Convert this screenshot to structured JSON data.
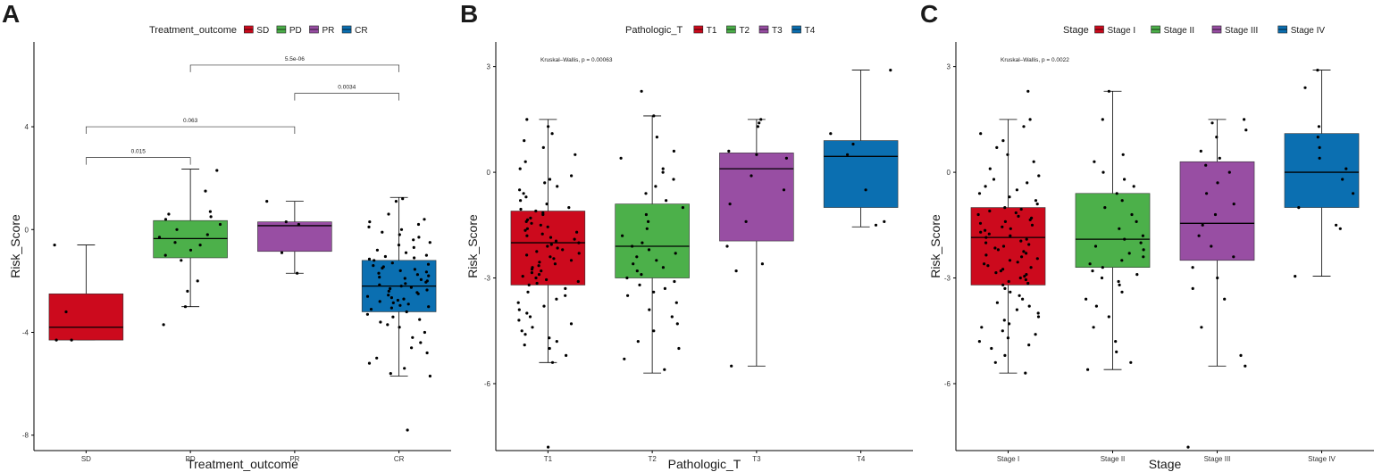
{
  "chart_data": [
    {
      "type": "box",
      "panel_label": "A",
      "legend_title": "Treatment_outcome",
      "xlabel": "Treatment_outcome",
      "ylabel": "Risk_Score",
      "ylim": [
        -8.6,
        7.3
      ],
      "y_ticks": [
        -8,
        -4,
        0,
        4
      ],
      "y_tick_labels": [
        "-8",
        "-4",
        "0",
        "4"
      ],
      "categories": [
        "SD",
        "PD",
        "PR",
        "CR"
      ],
      "colors": [
        "#cc0a1d",
        "#4cb04a",
        "#984ea3",
        "#0b6fb1"
      ],
      "boxes": [
        {
          "min": -4.3,
          "q1": -4.3,
          "median": -3.8,
          "q3": -2.5,
          "max": -0.6
        },
        {
          "min": -3.0,
          "q1": -1.1,
          "median": -0.35,
          "q3": 0.35,
          "max": 2.35
        },
        {
          "min": -1.7,
          "q1": -0.85,
          "median": 0.15,
          "q3": 0.3,
          "max": 1.1
        },
        {
          "min": -5.7,
          "q1": -3.2,
          "median": -2.2,
          "q3": -1.2,
          "max": 1.25
        }
      ],
      "points": [
        [
          -0.6,
          -3.2,
          -4.3,
          -4.3
        ],
        [
          2.3,
          1.5,
          -3.7,
          -3.0,
          0.5,
          0.6,
          0.7,
          0.4,
          0.2,
          0.0,
          -0.2,
          -0.3,
          -0.5,
          -0.6,
          -0.8,
          -1.0,
          -1.2,
          -2.0,
          -2.4
        ],
        [
          1.1,
          0.2,
          0.3,
          -0.9,
          -1.7
        ],
        [
          1.2,
          1.1,
          0.6,
          0.4,
          0.3,
          0.2,
          0.1,
          0.0,
          -0.1,
          -0.2,
          -0.3,
          -0.4,
          -0.5,
          -0.6,
          -0.7,
          -0.8,
          -0.9,
          -1.0,
          -1.05,
          -1.1,
          -1.15,
          -1.2,
          -1.3,
          -1.35,
          -1.4,
          -1.45,
          -1.5,
          -1.55,
          -1.6,
          -1.65,
          -1.7,
          -1.75,
          -1.8,
          -1.85,
          -1.9,
          -1.95,
          -2.0,
          -2.05,
          -2.1,
          -2.15,
          -2.2,
          -2.25,
          -2.3,
          -2.35,
          -2.4,
          -2.45,
          -2.5,
          -2.55,
          -2.6,
          -2.65,
          -2.7,
          -2.75,
          -2.8,
          -2.85,
          -2.9,
          -2.95,
          -3.0,
          -3.05,
          -3.1,
          -3.2,
          -3.3,
          -3.4,
          -3.5,
          -3.6,
          -3.7,
          -3.8,
          -4.0,
          -4.2,
          -4.4,
          -4.6,
          -4.8,
          -5.0,
          -5.2,
          -5.4,
          -5.6,
          -5.7,
          -7.8
        ]
      ],
      "comparisons": [
        {
          "from": 0,
          "to": 1,
          "y": 2.8,
          "label": "0.015"
        },
        {
          "from": 0,
          "to": 2,
          "y": 4.0,
          "label": "0.063"
        },
        {
          "from": 2,
          "to": 3,
          "y": 5.3,
          "label": "0.0034"
        },
        {
          "from": 1,
          "to": 3,
          "y": 6.4,
          "label": "5.5e-06"
        }
      ]
    },
    {
      "type": "box",
      "panel_label": "B",
      "legend_title": "Pathologic_T",
      "xlabel": "Pathologic_T",
      "ylabel": "Risk_Score",
      "annotation": "Kruskal–Wallis, p = 0.00063",
      "ylim": [
        -7.9,
        3.7
      ],
      "y_ticks": [
        -6,
        -3,
        0,
        3
      ],
      "y_tick_labels": [
        "-6",
        "-3",
        "0",
        "3"
      ],
      "categories": [
        "T1",
        "T2",
        "T3",
        "T4"
      ],
      "colors": [
        "#cc0a1d",
        "#4cb04a",
        "#984ea3",
        "#0b6fb1"
      ],
      "boxes": [
        {
          "min": -5.4,
          "q1": -3.2,
          "median": -2.0,
          "q3": -1.1,
          "max": 1.5
        },
        {
          "min": -5.7,
          "q1": -3.0,
          "median": -2.1,
          "q3": -0.9,
          "max": 1.6
        },
        {
          "min": -5.5,
          "q1": -1.95,
          "median": 0.1,
          "q3": 0.55,
          "max": 1.5
        },
        {
          "min": -1.55,
          "q1": -1.0,
          "median": 0.45,
          "q3": 0.9,
          "max": 2.9
        }
      ],
      "points": [
        [
          1.5,
          1.3,
          1.1,
          0.9,
          0.7,
          0.5,
          0.3,
          0.1,
          -0.1,
          -0.2,
          -0.3,
          -0.4,
          -0.5,
          -0.6,
          -0.7,
          -0.8,
          -0.9,
          -1.0,
          -1.05,
          -1.1,
          -1.15,
          -1.2,
          -1.3,
          -1.35,
          -1.4,
          -1.45,
          -1.5,
          -1.55,
          -1.6,
          -1.65,
          -1.7,
          -1.75,
          -1.8,
          -1.85,
          -1.9,
          -1.95,
          -2.0,
          -2.05,
          -2.1,
          -2.15,
          -2.2,
          -2.25,
          -2.3,
          -2.35,
          -2.4,
          -2.45,
          -2.5,
          -2.55,
          -2.6,
          -2.65,
          -2.7,
          -2.75,
          -2.8,
          -2.85,
          -2.9,
          -2.95,
          -3.0,
          -3.05,
          -3.1,
          -3.15,
          -3.2,
          -3.3,
          -3.4,
          -3.5,
          -3.6,
          -3.7,
          -3.8,
          -3.9,
          -4.0,
          -4.1,
          -4.2,
          -4.3,
          -4.4,
          -4.5,
          -4.6,
          -4.7,
          -4.8,
          -4.9,
          -5.0,
          -5.2,
          -5.4,
          -7.8
        ],
        [
          2.3,
          1.6,
          1.0,
          0.6,
          0.4,
          0.1,
          0.0,
          -0.2,
          -0.4,
          -0.6,
          -0.8,
          -1.0,
          -1.2,
          -1.4,
          -1.6,
          -1.8,
          -2.0,
          -2.1,
          -2.2,
          -2.3,
          -2.4,
          -2.5,
          -2.6,
          -2.7,
          -2.8,
          -2.9,
          -3.0,
          -3.1,
          -3.2,
          -3.3,
          -3.4,
          -3.5,
          -3.7,
          -3.9,
          -4.1,
          -4.3,
          -4.5,
          -4.8,
          -5.0,
          -5.3,
          -5.6
        ],
        [
          1.4,
          1.3,
          1.5,
          0.6,
          0.5,
          0.4,
          -0.1,
          -0.5,
          -0.9,
          -1.4,
          -2.1,
          -2.6,
          -2.8,
          -5.5
        ],
        [
          2.9,
          1.1,
          0.8,
          0.5,
          -0.5,
          -1.4,
          -1.5
        ]
      ]
    },
    {
      "type": "box",
      "panel_label": "C",
      "legend_title": "Stage",
      "xlabel": "Stage",
      "ylabel": "Risk_Score",
      "annotation": "Kruskal–Wallis, p = 0.0022",
      "ylim": [
        -7.9,
        3.7
      ],
      "y_ticks": [
        -6,
        -3,
        0,
        3
      ],
      "y_tick_labels": [
        "-6",
        "-3",
        "0",
        "3"
      ],
      "categories": [
        "Stage I",
        "Stage II",
        "Stage III",
        "Stage IV"
      ],
      "colors": [
        "#cc0a1d",
        "#4cb04a",
        "#984ea3",
        "#0b6fb1"
      ],
      "boxes": [
        {
          "min": -5.7,
          "q1": -3.2,
          "median": -1.85,
          "q3": -1.0,
          "max": 1.5
        },
        {
          "min": -5.6,
          "q1": -2.7,
          "median": -1.9,
          "q3": -0.6,
          "max": 2.3
        },
        {
          "min": -5.5,
          "q1": -2.5,
          "median": -1.45,
          "q3": 0.3,
          "max": 1.5
        },
        {
          "min": -2.95,
          "q1": -1.0,
          "median": 0.0,
          "q3": 1.1,
          "max": 2.9
        }
      ],
      "points": [
        [
          2.3,
          1.5,
          1.3,
          1.1,
          0.9,
          0.7,
          0.5,
          0.3,
          0.1,
          -0.1,
          -0.2,
          -0.3,
          -0.4,
          -0.5,
          -0.6,
          -0.7,
          -0.8,
          -0.9,
          -1.0,
          -1.05,
          -1.1,
          -1.15,
          -1.2,
          -1.25,
          -1.3,
          -1.35,
          -1.4,
          -1.45,
          -1.5,
          -1.55,
          -1.6,
          -1.65,
          -1.7,
          -1.75,
          -1.8,
          -1.85,
          -1.9,
          -1.95,
          -2.0,
          -2.05,
          -2.1,
          -2.15,
          -2.2,
          -2.25,
          -2.3,
          -2.35,
          -2.4,
          -2.45,
          -2.5,
          -2.55,
          -2.6,
          -2.65,
          -2.7,
          -2.75,
          -2.8,
          -2.85,
          -2.9,
          -2.95,
          -3.0,
          -3.05,
          -3.1,
          -3.15,
          -3.2,
          -3.3,
          -3.4,
          -3.5,
          -3.6,
          -3.7,
          -3.8,
          -3.9,
          -4.0,
          -4.1,
          -4.2,
          -4.3,
          -4.4,
          -4.5,
          -4.6,
          -4.7,
          -4.8,
          -4.9,
          -5.0,
          -5.2,
          -5.4,
          -5.7
        ],
        [
          2.3,
          1.5,
          0.5,
          0.3,
          0.0,
          -0.2,
          -0.4,
          -0.6,
          -0.8,
          -1.0,
          -1.2,
          -1.4,
          -1.6,
          -1.8,
          -1.9,
          -2.0,
          -2.1,
          -2.2,
          -2.3,
          -2.4,
          -2.5,
          -2.6,
          -2.7,
          -2.8,
          -2.9,
          -3.0,
          -3.1,
          -3.2,
          -3.4,
          -3.6,
          -3.8,
          -4.1,
          -4.4,
          -4.8,
          -5.1,
          -5.4,
          -5.6
        ],
        [
          1.5,
          1.4,
          1.2,
          1.0,
          0.6,
          0.4,
          0.2,
          0.0,
          -0.3,
          -0.6,
          -0.9,
          -1.2,
          -1.5,
          -1.8,
          -2.1,
          -2.4,
          -2.7,
          -3.0,
          -3.3,
          -3.6,
          -4.4,
          -5.2,
          -5.5,
          -7.8
        ],
        [
          2.9,
          2.4,
          1.3,
          1.0,
          0.7,
          0.4,
          0.1,
          -0.2,
          -0.6,
          -1.0,
          -1.5,
          -1.6,
          -2.95
        ]
      ]
    }
  ]
}
